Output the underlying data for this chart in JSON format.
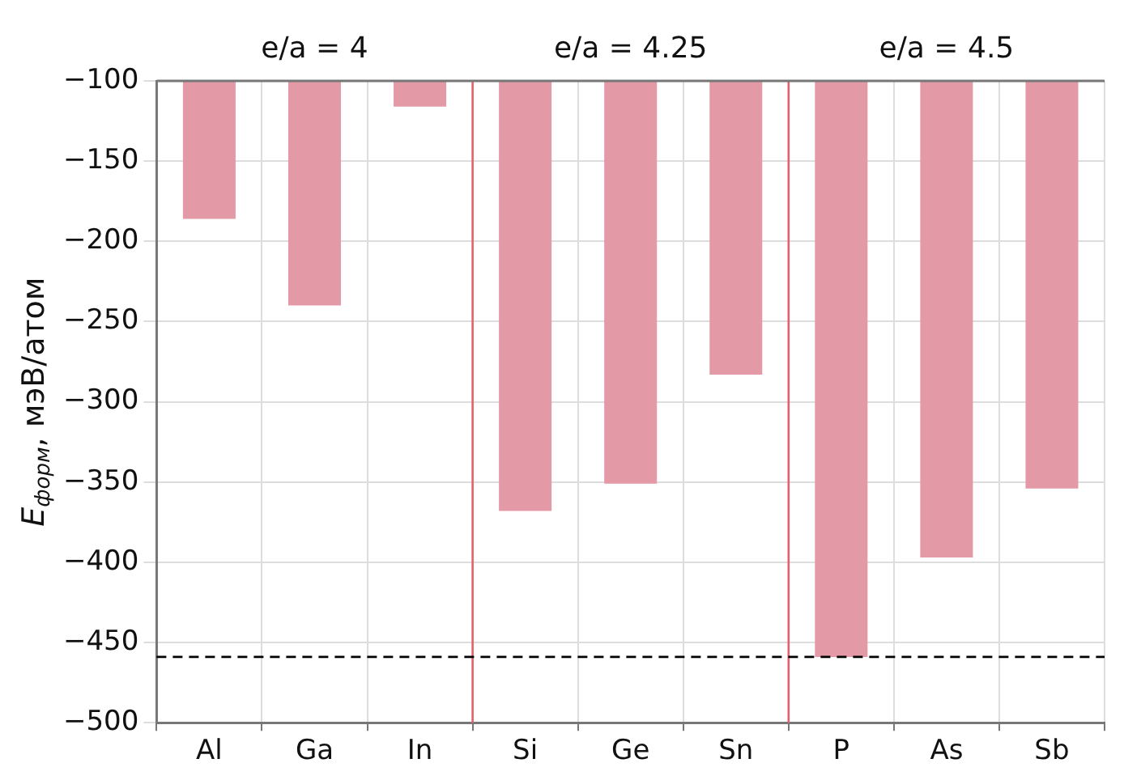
{
  "chart_data": {
    "type": "bar",
    "ylabel": "E$_{форм}$, мэВ/атом",
    "categories": [
      "Al",
      "Ga",
      "In",
      "Si",
      "Ge",
      "Sn",
      "P",
      "As",
      "Sb"
    ],
    "values": [
      -186,
      -240,
      -116,
      -368,
      -351,
      -283,
      -459,
      -397,
      -354
    ],
    "color": "#e39aa6",
    "ylim": [
      -500,
      -100
    ],
    "yticks": [
      -500,
      -450,
      -400,
      -350,
      -300,
      -250,
      -200,
      -150,
      -100
    ],
    "grid": true,
    "legend": false,
    "ref_lines": [
      {
        "axis": "y",
        "value": -459,
        "color": "#000000",
        "line_style": "dashed"
      }
    ],
    "annotations": [
      "e/a = 4",
      "e/a = 4.25",
      "e/a = 4.5"
    ]
  }
}
